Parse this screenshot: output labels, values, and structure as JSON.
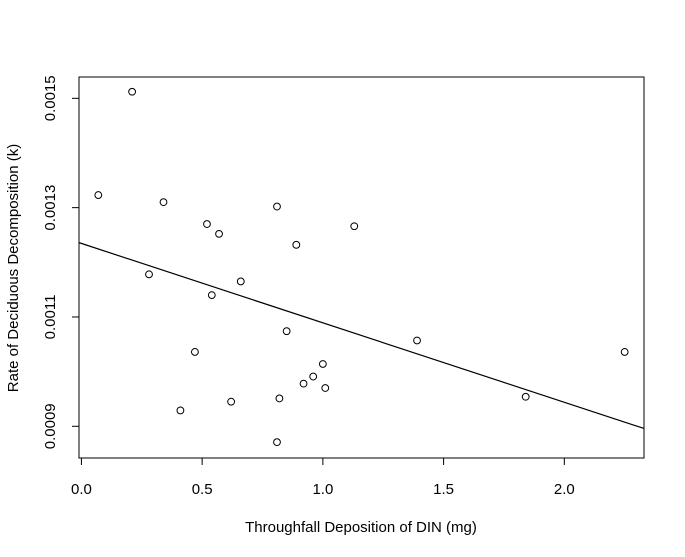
{
  "chart_data": {
    "type": "scatter",
    "title": "",
    "xlabel": "Throughfall Deposition of DIN (mg)",
    "ylabel": "Rate of Deciduous Decomposition (k)",
    "xlim": [
      -0.01,
      2.33
    ],
    "ylim": [
      0.000842,
      0.001539
    ],
    "x_ticks": [
      {
        "value": 0.0,
        "label": "0.0"
      },
      {
        "value": 0.5,
        "label": "0.5"
      },
      {
        "value": 1.0,
        "label": "1.0"
      },
      {
        "value": 1.5,
        "label": "1.5"
      },
      {
        "value": 2.0,
        "label": "2.0"
      }
    ],
    "y_ticks": [
      {
        "value": 0.0009,
        "label": "0.0009"
      },
      {
        "value": 0.0011,
        "label": "0.0011"
      },
      {
        "value": 0.0013,
        "label": "0.0013"
      },
      {
        "value": 0.0015,
        "label": "0.0015"
      }
    ],
    "grid": false,
    "legend": "none",
    "series": [
      {
        "points": [
          {
            "x": 0.07,
            "y": 0.001323
          },
          {
            "x": 0.21,
            "y": 0.001512
          },
          {
            "x": 0.28,
            "y": 0.001178
          },
          {
            "x": 0.34,
            "y": 0.00131
          },
          {
            "x": 0.41,
            "y": 0.000929
          },
          {
            "x": 0.47,
            "y": 0.001036
          },
          {
            "x": 0.52,
            "y": 0.00127
          },
          {
            "x": 0.54,
            "y": 0.00114
          },
          {
            "x": 0.57,
            "y": 0.001252
          },
          {
            "x": 0.62,
            "y": 0.000945
          },
          {
            "x": 0.66,
            "y": 0.001165
          },
          {
            "x": 0.81,
            "y": 0.001302
          },
          {
            "x": 0.81,
            "y": 0.000871
          },
          {
            "x": 0.82,
            "y": 0.000951
          },
          {
            "x": 0.85,
            "y": 0.001074
          },
          {
            "x": 0.89,
            "y": 0.001232
          },
          {
            "x": 0.92,
            "y": 0.000978
          },
          {
            "x": 0.96,
            "y": 0.000991
          },
          {
            "x": 1.0,
            "y": 0.001014
          },
          {
            "x": 1.01,
            "y": 0.00097
          },
          {
            "x": 1.13,
            "y": 0.001266
          },
          {
            "x": 1.39,
            "y": 0.001057
          },
          {
            "x": 1.84,
            "y": 0.000954
          },
          {
            "x": 2.25,
            "y": 0.001036
          }
        ]
      }
    ],
    "fit_line": {
      "x": [
        -0.01,
        2.33
      ],
      "y": [
        0.001236,
        0.000896
      ]
    }
  }
}
